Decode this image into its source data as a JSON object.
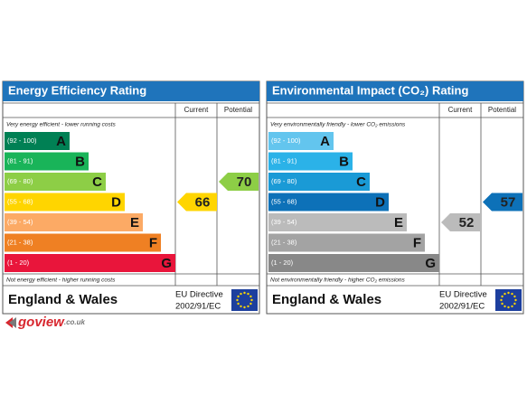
{
  "panels": [
    {
      "title": "Energy Efficiency Rating",
      "headers": [
        "Current",
        "Potential"
      ],
      "top_note": "Very energy efficient - lower running costs",
      "bands": [
        {
          "range": "(92 - 100)",
          "letter": "A",
          "color": "#008054"
        },
        {
          "range": "(81 - 91)",
          "letter": "B",
          "color": "#19b459"
        },
        {
          "range": "(69 - 80)",
          "letter": "C",
          "color": "#8dce46"
        },
        {
          "range": "(55 - 68)",
          "letter": "D",
          "color": "#ffd500"
        },
        {
          "range": "(39 - 54)",
          "letter": "E",
          "color": "#fcaa65"
        },
        {
          "range": "(21 - 38)",
          "letter": "F",
          "color": "#ef8023"
        },
        {
          "range": "(1 - 20)",
          "letter": "G",
          "color": "#e9153b"
        }
      ],
      "bottom_note": "Not energy efficient - higher running costs",
      "footer": {
        "country": "England & Wales",
        "directive": "EU Directive",
        "code": "2002/91/EC"
      },
      "current": 66,
      "potential": 70
    },
    {
      "title": "Environmental Impact (CO₂) Rating",
      "headers": [
        "Current",
        "Potential"
      ],
      "top_note": "Very environmentally friendly - lower CO₂ emissions",
      "bands": [
        {
          "range": "(92 - 100)",
          "letter": "A",
          "color": "#63c5ee"
        },
        {
          "range": "(81 - 91)",
          "letter": "B",
          "color": "#2bb2e8"
        },
        {
          "range": "(69 - 80)",
          "letter": "C",
          "color": "#1a9ad6"
        },
        {
          "range": "(55 - 68)",
          "letter": "D",
          "color": "#0d71b8"
        },
        {
          "range": "(39 - 54)",
          "letter": "E",
          "color": "#bbbbbb"
        },
        {
          "range": "(21 - 38)",
          "letter": "F",
          "color": "#a3a3a3"
        },
        {
          "range": "(1 - 20)",
          "letter": "G",
          "color": "#888888"
        }
      ],
      "bottom_note": "Not environmentally friendly - higher CO₂ emissions",
      "footer": {
        "country": "England & Wales",
        "directive": "EU Directive",
        "code": "2002/91/EC"
      },
      "current": 52,
      "potential": 57
    }
  ],
  "logo": {
    "name": "goview",
    "domain": ".co.uk"
  }
}
